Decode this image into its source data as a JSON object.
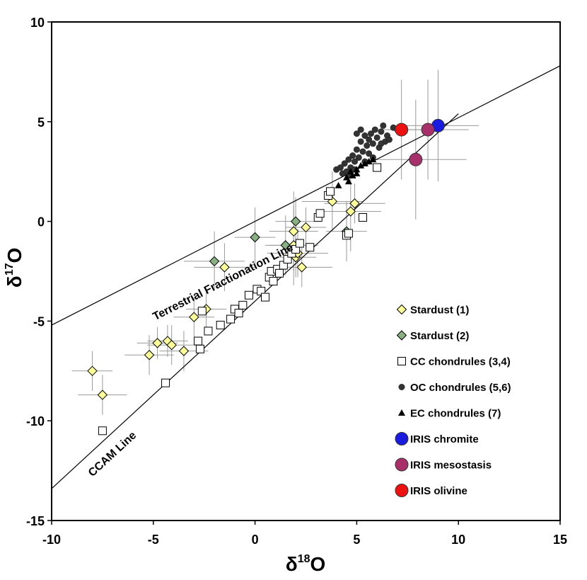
{
  "chart_data": {
    "type": "scatter",
    "title": "",
    "xlabel": {
      "base": "δ",
      "sup": "18",
      "tail": "O"
    },
    "ylabel": {
      "base": "δ",
      "sup": "17",
      "tail": "O"
    },
    "xlim": [
      -10,
      15
    ],
    "ylim": [
      -15,
      10
    ],
    "xticks": [
      -10,
      -5,
      0,
      5,
      10,
      15
    ],
    "yticks": [
      10,
      5,
      0,
      -5,
      -10,
      -15
    ],
    "xtick_labels": [
      "-10",
      "-5",
      "0",
      "5",
      "10",
      "15"
    ],
    "ytick_labels": [
      "10",
      "5",
      "0",
      "-5",
      "-10",
      "-15"
    ],
    "grid": false,
    "reference_lines": [
      {
        "name": "Terrestrial Fractionation Line",
        "slope": 0.52,
        "intercept": 0,
        "x_range": [
          -10,
          15
        ],
        "label_x": -1.5,
        "label_y": -3.2
      },
      {
        "name": "CCAM Line",
        "slope": 0.94,
        "intercept": -4.0,
        "x_range": [
          -10,
          10
        ],
        "label_x": -6.9,
        "label_y": -11.8
      }
    ],
    "series": [
      {
        "name": "Stardust (1)",
        "marker": "diamond",
        "color": "#FFFF99",
        "points": [
          {
            "x": -8.0,
            "y": -7.5,
            "xe": 1.0,
            "ye": 1.0
          },
          {
            "x": -7.5,
            "y": -8.7,
            "xe": 1.2,
            "ye": 1.0
          },
          {
            "x": -5.2,
            "y": -6.7,
            "xe": 1.2,
            "ye": 1.0
          },
          {
            "x": -4.8,
            "y": -6.1,
            "xe": 1.0,
            "ye": 0.8
          },
          {
            "x": -4.3,
            "y": -6.0,
            "xe": 1.0,
            "ye": 0.8
          },
          {
            "x": -4.1,
            "y": -6.2,
            "xe": 1.2,
            "ye": 1.0
          },
          {
            "x": -3.5,
            "y": -6.5,
            "xe": 1.2,
            "ye": 1.0
          },
          {
            "x": -3.0,
            "y": -4.8,
            "xe": 1.0,
            "ye": 1.0
          },
          {
            "x": -2.4,
            "y": -4.4,
            "xe": 1.0,
            "ye": 1.0
          },
          {
            "x": -1.5,
            "y": -2.3,
            "xe": 1.5,
            "ye": 1.2
          },
          {
            "x": 1.9,
            "y": -0.5,
            "xe": 1.2,
            "ye": 2.0
          },
          {
            "x": 1.9,
            "y": -1.2,
            "xe": 1.2,
            "ye": 2.0
          },
          {
            "x": 2.0,
            "y": -1.8,
            "xe": 1.0,
            "ye": 1.0
          },
          {
            "x": 2.1,
            "y": -1.6,
            "xe": 1.5,
            "ye": 1.2
          },
          {
            "x": 2.3,
            "y": -2.3,
            "xe": 1.5,
            "ye": 1.0
          },
          {
            "x": 2.5,
            "y": -0.3,
            "xe": 1.0,
            "ye": 1.0
          },
          {
            "x": 3.8,
            "y": 1.0,
            "xe": 1.5,
            "ye": 1.5
          },
          {
            "x": 4.7,
            "y": 0.5,
            "xe": 1.5,
            "ye": 2.0
          },
          {
            "x": 4.9,
            "y": 0.9,
            "xe": 1.5,
            "ye": 1.0
          }
        ]
      },
      {
        "name": "Stardust (2)",
        "marker": "diamond",
        "color": "#88B080",
        "points": [
          {
            "x": -2.0,
            "y": -2.0,
            "xe": 1.5,
            "ye": 1.5
          },
          {
            "x": 0.0,
            "y": -0.8,
            "xe": 1.0,
            "ye": 1.5
          },
          {
            "x": 1.5,
            "y": -1.2,
            "xe": 1.0,
            "ye": 1.5
          },
          {
            "x": 2.0,
            "y": 0.0,
            "xe": 1.0,
            "ye": 1.2
          },
          {
            "x": 4.5,
            "y": -0.5,
            "xe": 1.0,
            "ye": 1.5
          }
        ]
      },
      {
        "name": "CC chondrules (3,4)",
        "marker": "square",
        "color": "#FFFFFF",
        "points": [
          {
            "x": -7.5,
            "y": -10.5,
            "xe": 0,
            "ye": 0
          },
          {
            "x": -4.4,
            "y": -8.1,
            "xe": 0,
            "ye": 0
          },
          {
            "x": -2.7,
            "y": -6.4,
            "xe": 0,
            "ye": 0
          },
          {
            "x": -2.8,
            "y": -6.0,
            "xe": 0,
            "ye": 0
          },
          {
            "x": -2.3,
            "y": -5.5,
            "xe": 0,
            "ye": 0
          },
          {
            "x": -1.7,
            "y": -5.2,
            "xe": 0,
            "ye": 0
          },
          {
            "x": -2.6,
            "y": -4.5,
            "xe": 0,
            "ye": 0
          },
          {
            "x": -1.2,
            "y": -4.9,
            "xe": 0,
            "ye": 0
          },
          {
            "x": -1.0,
            "y": -4.4,
            "xe": 0,
            "ye": 0
          },
          {
            "x": -0.8,
            "y": -4.6,
            "xe": 0,
            "ye": 0
          },
          {
            "x": -0.6,
            "y": -4.2,
            "xe": 0,
            "ye": 0
          },
          {
            "x": -0.3,
            "y": -3.7,
            "xe": 0,
            "ye": 0
          },
          {
            "x": 0.1,
            "y": -3.4,
            "xe": 0,
            "ye": 0
          },
          {
            "x": 0.3,
            "y": -3.5,
            "xe": 0,
            "ye": 0
          },
          {
            "x": 0.5,
            "y": -3.8,
            "xe": 0,
            "ye": 0
          },
          {
            "x": 0.7,
            "y": -2.8,
            "xe": 0,
            "ye": 0
          },
          {
            "x": 0.8,
            "y": -2.5,
            "xe": 0,
            "ye": 0
          },
          {
            "x": 0.9,
            "y": -3.0,
            "xe": 0,
            "ye": 0
          },
          {
            "x": 1.1,
            "y": -2.4,
            "xe": 0,
            "ye": 0
          },
          {
            "x": 1.2,
            "y": -2.6,
            "xe": 0,
            "ye": 0
          },
          {
            "x": 1.4,
            "y": -2.2,
            "xe": 0,
            "ye": 0
          },
          {
            "x": 1.6,
            "y": -1.9,
            "xe": 0,
            "ye": 0
          },
          {
            "x": 1.8,
            "y": -1.6,
            "xe": 0,
            "ye": 0
          },
          {
            "x": 2.0,
            "y": -1.4,
            "xe": 0,
            "ye": 0
          },
          {
            "x": 2.2,
            "y": -1.1,
            "xe": 0,
            "ye": 0
          },
          {
            "x": 2.7,
            "y": -1.3,
            "xe": 0,
            "ye": 0
          },
          {
            "x": 3.1,
            "y": 0.2,
            "xe": 0,
            "ye": 0
          },
          {
            "x": 3.2,
            "y": 0.4,
            "xe": 0,
            "ye": 0
          },
          {
            "x": 3.6,
            "y": 1.3,
            "xe": 0,
            "ye": 0
          },
          {
            "x": 3.7,
            "y": 1.5,
            "xe": 0,
            "ye": 0
          },
          {
            "x": 4.5,
            "y": -0.7,
            "xe": 0,
            "ye": 0
          },
          {
            "x": 4.6,
            "y": -0.6,
            "xe": 0,
            "ye": 0
          },
          {
            "x": 5.3,
            "y": 0.2,
            "xe": 0,
            "ye": 0
          },
          {
            "x": 6.0,
            "y": 2.7,
            "xe": 0,
            "ye": 0
          }
        ]
      },
      {
        "name": "OC chondrules (5,6)",
        "marker": "circle",
        "color": "#333333",
        "points": [
          {
            "x": 4.0,
            "y": 2.6
          },
          {
            "x": 4.2,
            "y": 2.7
          },
          {
            "x": 4.3,
            "y": 2.4
          },
          {
            "x": 4.4,
            "y": 2.9
          },
          {
            "x": 4.5,
            "y": 2.5
          },
          {
            "x": 4.6,
            "y": 3.1
          },
          {
            "x": 4.7,
            "y": 2.7
          },
          {
            "x": 4.8,
            "y": 3.3
          },
          {
            "x": 4.9,
            "y": 3.0
          },
          {
            "x": 5.0,
            "y": 3.6
          },
          {
            "x": 5.1,
            "y": 3.2
          },
          {
            "x": 5.2,
            "y": 4.0
          },
          {
            "x": 5.3,
            "y": 3.5
          },
          {
            "x": 5.4,
            "y": 4.3
          },
          {
            "x": 5.5,
            "y": 3.8
          },
          {
            "x": 5.6,
            "y": 4.1
          },
          {
            "x": 5.7,
            "y": 4.4
          },
          {
            "x": 5.8,
            "y": 3.9
          },
          {
            "x": 5.9,
            "y": 4.6
          },
          {
            "x": 6.0,
            "y": 4.2
          },
          {
            "x": 6.1,
            "y": 3.7
          },
          {
            "x": 6.2,
            "y": 4.5
          },
          {
            "x": 6.3,
            "y": 4.8
          },
          {
            "x": 6.4,
            "y": 4.0
          },
          {
            "x": 6.5,
            "y": 4.3
          },
          {
            "x": 6.6,
            "y": 4.1
          },
          {
            "x": 6.8,
            "y": 4.7
          },
          {
            "x": 7.0,
            "y": 4.6
          },
          {
            "x": 5.0,
            "y": 4.4
          },
          {
            "x": 5.2,
            "y": 4.6
          },
          {
            "x": 5.6,
            "y": 3.4
          },
          {
            "x": 4.6,
            "y": 2.3
          },
          {
            "x": 4.9,
            "y": 2.6
          },
          {
            "x": 5.4,
            "y": 3.0
          },
          {
            "x": 5.8,
            "y": 3.2
          },
          {
            "x": 6.2,
            "y": 3.9
          }
        ]
      },
      {
        "name": "EC chondrules (7)",
        "marker": "triangle",
        "color": "#000000",
        "points": [
          {
            "x": 4.1,
            "y": 1.8
          },
          {
            "x": 4.5,
            "y": 2.2
          },
          {
            "x": 4.7,
            "y": 2.5
          },
          {
            "x": 4.8,
            "y": 2.3
          },
          {
            "x": 5.0,
            "y": 2.6
          },
          {
            "x": 5.2,
            "y": 2.8
          },
          {
            "x": 5.4,
            "y": 2.9
          },
          {
            "x": 5.6,
            "y": 3.0
          },
          {
            "x": 5.8,
            "y": 3.1
          },
          {
            "x": 5.0,
            "y": 2.4
          },
          {
            "x": 4.6,
            "y": 2.0
          }
        ]
      },
      {
        "name": "IRIS chromite",
        "marker": "bigcircle",
        "color": "#1B1BE0",
        "points": [
          {
            "x": 9.0,
            "y": 4.8,
            "xe": 2.0,
            "ye": 2.8
          }
        ]
      },
      {
        "name": "IRIS mesostasis",
        "marker": "bigcircle",
        "color": "#A8306A",
        "points": [
          {
            "x": 8.5,
            "y": 4.6,
            "xe": 2.0,
            "ye": 2.5
          },
          {
            "x": 7.9,
            "y": 3.1,
            "xe": 2.5,
            "ye": 3.0
          }
        ]
      },
      {
        "name": "IRIS olivine",
        "marker": "bigcircle",
        "color": "#EE1111",
        "points": [
          {
            "x": 7.2,
            "y": 4.6,
            "xe": 1.0,
            "ye": 2.5
          }
        ]
      }
    ]
  }
}
